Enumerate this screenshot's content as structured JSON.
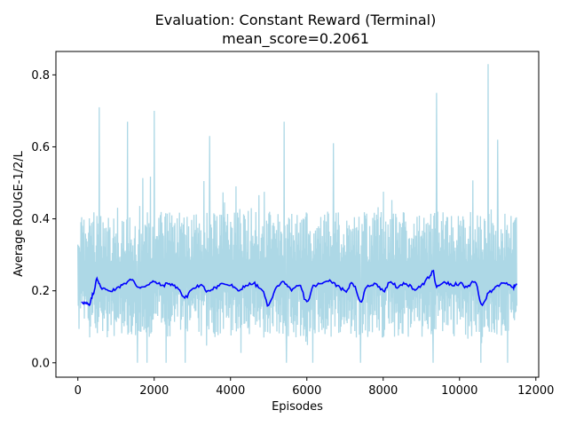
{
  "chart_data": {
    "type": "line",
    "title": "Evaluation: Constant Reward (Terminal)",
    "subtitle": "mean_score=0.2061",
    "xlabel": "Episodes",
    "ylabel": "Average ROUGE-1/2/L",
    "xlim": [
      -575,
      12075
    ],
    "ylim": [
      -0.04,
      0.865
    ],
    "xticks": [
      0,
      2000,
      4000,
      6000,
      8000,
      10000,
      12000
    ],
    "xtick_labels": [
      "0",
      "2000",
      "4000",
      "6000",
      "8000",
      "10000",
      "12000"
    ],
    "yticks": [
      0.0,
      0.2,
      0.4,
      0.6,
      0.8
    ],
    "ytick_labels": [
      "0.0",
      "0.2",
      "0.4",
      "0.6",
      "0.8"
    ],
    "grid": false,
    "colors": {
      "raw": "#add8e6",
      "smoothed": "#0000ff"
    },
    "series": [
      {
        "style": "raw-band",
        "x_start": 0,
        "x_end": 11500,
        "typical_low": 0.07,
        "typical_high": 0.42,
        "spikes": [
          [
            560,
            0.71
          ],
          [
            1300,
            0.67
          ],
          [
            2000,
            0.7
          ],
          [
            3450,
            0.63
          ],
          [
            5400,
            0.67
          ],
          [
            6700,
            0.61
          ],
          [
            9400,
            0.75
          ],
          [
            10750,
            0.83
          ],
          [
            11000,
            0.62
          ]
        ],
        "dips": [
          [
            1550,
            0.0
          ],
          [
            1800,
            0.0
          ],
          [
            2300,
            0.0
          ],
          [
            2800,
            0.0
          ],
          [
            5450,
            0.0
          ],
          [
            6150,
            0.0
          ],
          [
            7400,
            0.0
          ],
          [
            9300,
            0.0
          ],
          [
            10550,
            0.0
          ],
          [
            11250,
            0.0
          ]
        ]
      },
      {
        "style": "smoothed",
        "x": [
          100,
          200,
          300,
          400,
          500,
          600,
          800,
          1000,
          1200,
          1400,
          1600,
          1800,
          2000,
          2200,
          2400,
          2600,
          2800,
          3000,
          3200,
          3400,
          3600,
          3800,
          4000,
          4200,
          4400,
          4600,
          4800,
          5000,
          5200,
          5400,
          5600,
          5800,
          6000,
          6200,
          6400,
          6600,
          6800,
          7000,
          7200,
          7400,
          7600,
          7800,
          8000,
          8200,
          8400,
          8600,
          8800,
          9000,
          9200,
          9300,
          9400,
          9600,
          9800,
          10000,
          10200,
          10400,
          10600,
          10800,
          11000,
          11200,
          11400,
          11500
        ],
        "values": [
          0.17,
          0.165,
          0.16,
          0.19,
          0.235,
          0.21,
          0.2,
          0.205,
          0.22,
          0.23,
          0.21,
          0.215,
          0.225,
          0.215,
          0.22,
          0.21,
          0.18,
          0.205,
          0.215,
          0.2,
          0.21,
          0.22,
          0.215,
          0.2,
          0.215,
          0.22,
          0.205,
          0.16,
          0.21,
          0.225,
          0.2,
          0.215,
          0.17,
          0.215,
          0.22,
          0.23,
          0.215,
          0.2,
          0.22,
          0.17,
          0.215,
          0.22,
          0.2,
          0.225,
          0.21,
          0.22,
          0.205,
          0.215,
          0.235,
          0.255,
          0.21,
          0.225,
          0.215,
          0.22,
          0.21,
          0.225,
          0.16,
          0.2,
          0.215,
          0.22,
          0.21,
          0.22
        ]
      }
    ]
  }
}
